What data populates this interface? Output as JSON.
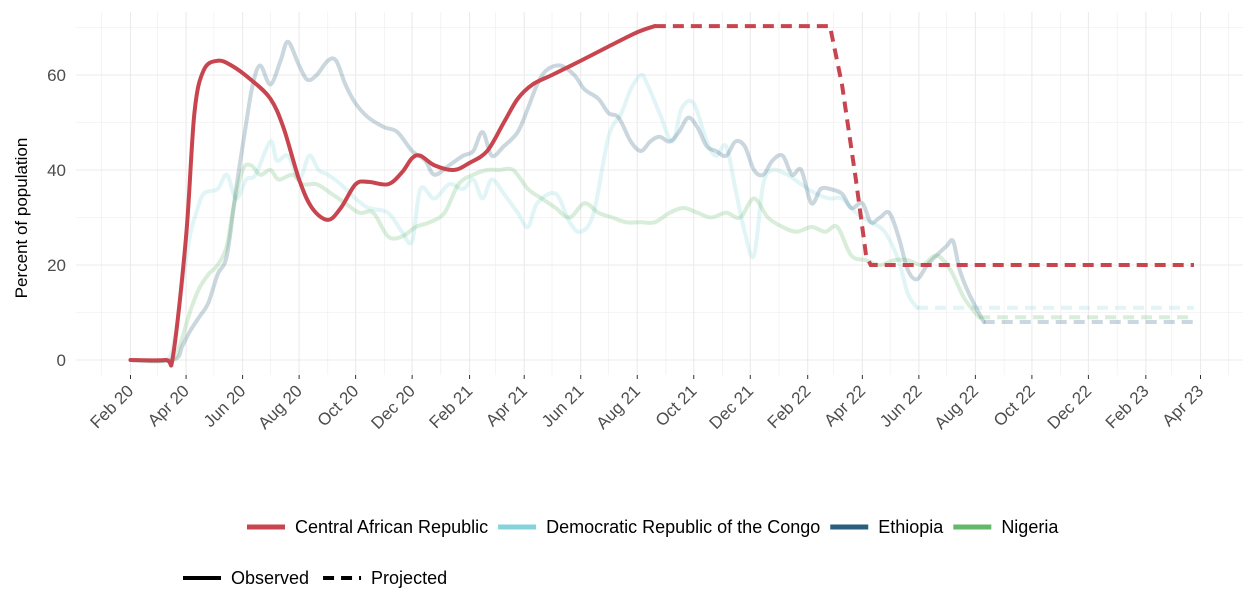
{
  "chart_data": {
    "type": "line",
    "title": "",
    "xlabel": "",
    "ylabel": "Percent of population",
    "x_axis": {
      "type": "date",
      "range": [
        "2020-02-01",
        "2023-04-01"
      ],
      "tick_labels": [
        "Feb 20",
        "Apr 20",
        "Jun 20",
        "Aug 20",
        "Oct 20",
        "Dec 20",
        "Feb 21",
        "Apr 21",
        "Jun 21",
        "Aug 21",
        "Oct 21",
        "Dec 21",
        "Feb 22",
        "Apr 22",
        "Jun 22",
        "Aug 22",
        "Oct 22",
        "Dec 22",
        "Feb 23",
        "Apr 23"
      ]
    },
    "y_axis": {
      "range": [
        -4,
        72
      ],
      "ticks": [
        0,
        20,
        40,
        60
      ]
    },
    "grid": true,
    "legend": {
      "placement": "bottom",
      "series_entries": [
        "Central African Republic",
        "Democratic Republic of the Congo",
        "Ethiopia",
        "Nigeria"
      ],
      "linetype_entries": [
        "Observed",
        "Projected"
      ]
    },
    "series": [
      {
        "name": "Central African Republic",
        "color": "#c8454f",
        "highlighted": true,
        "observed": [
          [
            "2020-02-01",
            0
          ],
          [
            "2020-03-10",
            0
          ],
          [
            "2020-03-18",
            1
          ],
          [
            "2020-04-01",
            26
          ],
          [
            "2020-04-10",
            52
          ],
          [
            "2020-04-20",
            61
          ],
          [
            "2020-05-05",
            63
          ],
          [
            "2020-05-20",
            62
          ],
          [
            "2020-06-10",
            59
          ],
          [
            "2020-07-01",
            55
          ],
          [
            "2020-07-15",
            49
          ],
          [
            "2020-08-01",
            38
          ],
          [
            "2020-08-15",
            32
          ],
          [
            "2020-09-01",
            29.5
          ],
          [
            "2020-09-15",
            32
          ],
          [
            "2020-10-01",
            37
          ],
          [
            "2020-10-15",
            37.5
          ],
          [
            "2020-11-05",
            37
          ],
          [
            "2020-11-20",
            39.5
          ],
          [
            "2020-12-01",
            42.5
          ],
          [
            "2020-12-10",
            43
          ],
          [
            "2020-12-25",
            41
          ],
          [
            "2021-01-15",
            40
          ],
          [
            "2021-02-01",
            41.5
          ],
          [
            "2021-02-20",
            44
          ],
          [
            "2021-03-10",
            50
          ],
          [
            "2021-03-25",
            55
          ],
          [
            "2021-04-10",
            58
          ],
          [
            "2021-05-01",
            60
          ],
          [
            "2021-06-01",
            63
          ],
          [
            "2021-07-01",
            66
          ],
          [
            "2021-08-01",
            69
          ],
          [
            "2021-08-20",
            70.3
          ]
        ],
        "projected": [
          [
            "2021-08-20",
            70.3
          ],
          [
            "2022-02-25",
            70.3
          ],
          [
            "2022-03-10",
            58
          ],
          [
            "2022-03-25",
            38
          ],
          [
            "2022-04-05",
            22
          ],
          [
            "2022-04-10",
            20
          ],
          [
            "2023-03-25",
            20
          ]
        ]
      },
      {
        "name": "Democratic Republic of the Congo",
        "color": "#87d3dc",
        "highlighted": false,
        "observed": [
          [
            "2020-02-01",
            0
          ],
          [
            "2020-03-10",
            0
          ],
          [
            "2020-03-20",
            5
          ],
          [
            "2020-03-28",
            16
          ],
          [
            "2020-04-05",
            26
          ],
          [
            "2020-04-12",
            31
          ],
          [
            "2020-04-20",
            35
          ],
          [
            "2020-05-05",
            36
          ],
          [
            "2020-05-15",
            39
          ],
          [
            "2020-05-25",
            34
          ],
          [
            "2020-06-05",
            38
          ],
          [
            "2020-06-15",
            39
          ],
          [
            "2020-07-01",
            46
          ],
          [
            "2020-07-08",
            42
          ],
          [
            "2020-07-20",
            43
          ],
          [
            "2020-08-01",
            38
          ],
          [
            "2020-08-12",
            43
          ],
          [
            "2020-08-22",
            40
          ],
          [
            "2020-09-01",
            39
          ],
          [
            "2020-09-15",
            37
          ],
          [
            "2020-10-01",
            34
          ],
          [
            "2020-10-15",
            32
          ],
          [
            "2020-11-05",
            31
          ],
          [
            "2020-11-20",
            27
          ],
          [
            "2020-12-01",
            25
          ],
          [
            "2020-12-10",
            36
          ],
          [
            "2020-12-25",
            34
          ],
          [
            "2021-01-10",
            37
          ],
          [
            "2021-01-25",
            36
          ],
          [
            "2021-02-05",
            38
          ],
          [
            "2021-02-15",
            34
          ],
          [
            "2021-02-25",
            38
          ],
          [
            "2021-03-10",
            35
          ],
          [
            "2021-03-25",
            31
          ],
          [
            "2021-04-05",
            28
          ],
          [
            "2021-04-15",
            33
          ],
          [
            "2021-05-05",
            35
          ],
          [
            "2021-05-20",
            29
          ],
          [
            "2021-06-01",
            27
          ],
          [
            "2021-06-15",
            31
          ],
          [
            "2021-07-01",
            47
          ],
          [
            "2021-07-15",
            52
          ],
          [
            "2021-07-25",
            57
          ],
          [
            "2021-08-05",
            60
          ],
          [
            "2021-08-12",
            58
          ],
          [
            "2021-08-25",
            52
          ],
          [
            "2021-09-08",
            46
          ],
          [
            "2021-09-18",
            53
          ],
          [
            "2021-10-01",
            54
          ],
          [
            "2021-10-15",
            46
          ],
          [
            "2021-10-25",
            43
          ],
          [
            "2021-11-05",
            45
          ],
          [
            "2021-11-15",
            36
          ],
          [
            "2021-11-25",
            27
          ],
          [
            "2021-12-05",
            22
          ],
          [
            "2021-12-15",
            37
          ],
          [
            "2021-12-25",
            40
          ],
          [
            "2022-01-10",
            39
          ],
          [
            "2022-01-25",
            37
          ],
          [
            "2022-02-10",
            35
          ],
          [
            "2022-02-25",
            34
          ],
          [
            "2022-03-10",
            34
          ],
          [
            "2022-03-25",
            31
          ],
          [
            "2022-04-10",
            29
          ],
          [
            "2022-04-25",
            27
          ],
          [
            "2022-05-10",
            21
          ],
          [
            "2022-05-20",
            14
          ],
          [
            "2022-05-30",
            11
          ]
        ],
        "projected": [
          [
            "2022-05-30",
            11
          ],
          [
            "2023-03-25",
            11
          ]
        ]
      },
      {
        "name": "Ethiopia",
        "color": "#2b5e7d",
        "highlighted": false,
        "observed": [
          [
            "2020-02-01",
            0
          ],
          [
            "2020-03-18",
            0
          ],
          [
            "2020-03-28",
            3
          ],
          [
            "2020-04-05",
            6
          ],
          [
            "2020-04-15",
            9
          ],
          [
            "2020-04-25",
            12
          ],
          [
            "2020-05-05",
            18
          ],
          [
            "2020-05-15",
            22
          ],
          [
            "2020-05-25",
            36
          ],
          [
            "2020-06-05",
            50
          ],
          [
            "2020-06-12",
            58
          ],
          [
            "2020-06-20",
            62
          ],
          [
            "2020-07-01",
            58
          ],
          [
            "2020-07-12",
            63
          ],
          [
            "2020-07-20",
            67
          ],
          [
            "2020-08-01",
            62
          ],
          [
            "2020-08-10",
            59
          ],
          [
            "2020-08-20",
            60
          ],
          [
            "2020-09-01",
            63
          ],
          [
            "2020-09-10",
            63
          ],
          [
            "2020-09-20",
            58
          ],
          [
            "2020-10-01",
            54
          ],
          [
            "2020-10-15",
            51
          ],
          [
            "2020-11-01",
            49
          ],
          [
            "2020-11-15",
            48
          ],
          [
            "2020-12-01",
            44
          ],
          [
            "2020-12-15",
            42
          ],
          [
            "2020-12-25",
            39
          ],
          [
            "2021-01-10",
            41
          ],
          [
            "2021-01-25",
            43
          ],
          [
            "2021-02-05",
            44
          ],
          [
            "2021-02-15",
            48
          ],
          [
            "2021-02-25",
            43
          ],
          [
            "2021-03-10",
            45
          ],
          [
            "2021-03-25",
            48
          ],
          [
            "2021-04-05",
            53
          ],
          [
            "2021-04-15",
            58
          ],
          [
            "2021-04-25",
            61
          ],
          [
            "2021-05-10",
            62
          ],
          [
            "2021-05-25",
            60
          ],
          [
            "2021-06-05",
            57
          ],
          [
            "2021-06-20",
            55
          ],
          [
            "2021-07-01",
            52
          ],
          [
            "2021-07-12",
            51
          ],
          [
            "2021-07-25",
            46
          ],
          [
            "2021-08-05",
            44
          ],
          [
            "2021-08-15",
            46
          ],
          [
            "2021-08-25",
            47
          ],
          [
            "2021-09-05",
            46
          ],
          [
            "2021-09-15",
            48
          ],
          [
            "2021-09-25",
            51
          ],
          [
            "2021-10-05",
            49
          ],
          [
            "2021-10-15",
            45
          ],
          [
            "2021-10-25",
            44
          ],
          [
            "2021-11-05",
            43
          ],
          [
            "2021-11-15",
            46
          ],
          [
            "2021-11-25",
            45
          ],
          [
            "2021-12-05",
            40
          ],
          [
            "2021-12-15",
            39
          ],
          [
            "2021-12-25",
            42
          ],
          [
            "2022-01-05",
            43
          ],
          [
            "2022-01-15",
            39
          ],
          [
            "2022-01-25",
            40
          ],
          [
            "2022-02-05",
            33
          ],
          [
            "2022-02-15",
            36
          ],
          [
            "2022-02-25",
            36
          ],
          [
            "2022-03-10",
            35
          ],
          [
            "2022-03-20",
            32
          ],
          [
            "2022-04-01",
            33
          ],
          [
            "2022-04-10",
            29
          ],
          [
            "2022-04-20",
            30
          ],
          [
            "2022-04-30",
            31
          ],
          [
            "2022-05-10",
            26
          ],
          [
            "2022-05-20",
            19
          ],
          [
            "2022-05-30",
            17
          ],
          [
            "2022-06-10",
            20
          ],
          [
            "2022-06-20",
            22
          ],
          [
            "2022-07-01",
            24
          ],
          [
            "2022-07-08",
            25
          ],
          [
            "2022-07-15",
            19
          ],
          [
            "2022-07-25",
            14
          ],
          [
            "2022-08-10",
            8
          ]
        ],
        "projected": [
          [
            "2022-08-10",
            8
          ],
          [
            "2023-03-25",
            8
          ]
        ]
      },
      {
        "name": "Nigeria",
        "color": "#62b96d",
        "highlighted": false,
        "observed": [
          [
            "2020-02-01",
            0
          ],
          [
            "2020-03-15",
            0
          ],
          [
            "2020-03-25",
            3
          ],
          [
            "2020-04-05",
            10
          ],
          [
            "2020-04-15",
            15
          ],
          [
            "2020-04-25",
            18
          ],
          [
            "2020-05-05",
            20
          ],
          [
            "2020-05-15",
            24
          ],
          [
            "2020-05-22",
            32
          ],
          [
            "2020-06-01",
            40
          ],
          [
            "2020-06-10",
            41
          ],
          [
            "2020-06-20",
            39
          ],
          [
            "2020-07-01",
            40
          ],
          [
            "2020-07-10",
            38
          ],
          [
            "2020-07-25",
            39
          ],
          [
            "2020-08-05",
            37
          ],
          [
            "2020-08-20",
            37
          ],
          [
            "2020-09-05",
            35
          ],
          [
            "2020-09-20",
            33
          ],
          [
            "2020-10-05",
            31
          ],
          [
            "2020-10-20",
            31
          ],
          [
            "2020-11-05",
            26
          ],
          [
            "2020-11-20",
            26
          ],
          [
            "2020-12-05",
            28
          ],
          [
            "2020-12-20",
            29
          ],
          [
            "2021-01-05",
            31
          ],
          [
            "2021-01-20",
            37
          ],
          [
            "2021-02-05",
            39
          ],
          [
            "2021-02-20",
            40
          ],
          [
            "2021-03-05",
            40
          ],
          [
            "2021-03-20",
            40
          ],
          [
            "2021-04-05",
            36
          ],
          [
            "2021-04-20",
            34
          ],
          [
            "2021-05-05",
            32
          ],
          [
            "2021-05-20",
            30
          ],
          [
            "2021-06-05",
            33
          ],
          [
            "2021-06-20",
            31
          ],
          [
            "2021-07-05",
            30
          ],
          [
            "2021-07-20",
            29
          ],
          [
            "2021-08-05",
            29
          ],
          [
            "2021-08-20",
            29
          ],
          [
            "2021-09-05",
            31
          ],
          [
            "2021-09-20",
            32
          ],
          [
            "2021-10-05",
            31
          ],
          [
            "2021-10-20",
            30
          ],
          [
            "2021-11-05",
            31
          ],
          [
            "2021-11-20",
            30
          ],
          [
            "2021-12-05",
            34
          ],
          [
            "2021-12-20",
            30
          ],
          [
            "2022-01-05",
            28
          ],
          [
            "2022-01-20",
            27
          ],
          [
            "2022-02-05",
            28
          ],
          [
            "2022-02-20",
            27
          ],
          [
            "2022-03-05",
            28
          ],
          [
            "2022-03-20",
            22
          ],
          [
            "2022-04-05",
            21
          ],
          [
            "2022-04-20",
            20
          ],
          [
            "2022-05-05",
            21
          ],
          [
            "2022-05-20",
            21
          ],
          [
            "2022-06-05",
            20
          ],
          [
            "2022-06-20",
            22
          ],
          [
            "2022-07-05",
            19
          ],
          [
            "2022-07-20",
            13
          ],
          [
            "2022-08-05",
            9
          ]
        ],
        "projected": [
          [
            "2022-08-05",
            9
          ],
          [
            "2023-03-25",
            9
          ]
        ]
      }
    ]
  }
}
